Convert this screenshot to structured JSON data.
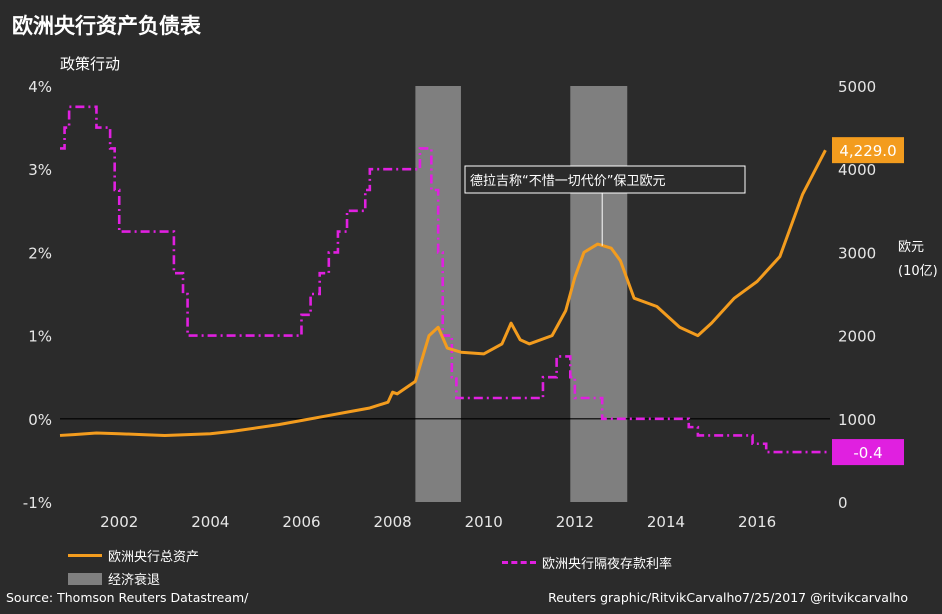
{
  "title": "欧洲央行资产负债表",
  "subtitle": "政策行动",
  "right_unit": [
    "欧元",
    "(10亿)"
  ],
  "annotation": "德拉吉称“不惜一切代价”保卫欧元",
  "footer": {
    "source": "Source: Thomson Reuters Datastream/",
    "credit": "Reuters graphic/RitvikCarvalho7/25/2017  @ritvikcarvalho"
  },
  "legend": {
    "assets": "欧洲央行总资产",
    "rate": "欧洲央行隔夜存款利率",
    "recession": "经济衰退"
  },
  "colors": {
    "assets": "#f39c1e",
    "rate": "#e020e0",
    "recession": "#7f7f7f",
    "background": "#2b2b2b"
  },
  "chart_data": {
    "type": "line",
    "title": "欧洲央行资产负债表",
    "subtitle": "政策行动",
    "x_ticks": [
      "2002",
      "2004",
      "2006",
      "2008",
      "2010",
      "2012",
      "2014",
      "2016"
    ],
    "xlim": [
      2000.7,
      2017.6
    ],
    "left_axis": {
      "ticks": [
        "4%",
        "3%",
        "2%",
        "1%",
        "0%",
        "-1%"
      ],
      "ylim": [
        -1,
        4
      ]
    },
    "right_axis": {
      "ticks": [
        "5000",
        "4000",
        "3000",
        "2000",
        "1000",
        "0"
      ],
      "ylim": [
        0,
        5000
      ],
      "label": "欧元 (10亿)"
    },
    "recessions": [
      [
        2008.5,
        2009.5
      ],
      [
        2011.9,
        2013.15
      ]
    ],
    "series": [
      {
        "name": "欧洲央行总资产",
        "axis": "right",
        "style": "solid",
        "last_label": "4,229.0",
        "points": [
          [
            2000.7,
            800
          ],
          [
            2001.0,
            810
          ],
          [
            2001.5,
            830
          ],
          [
            2002.0,
            820
          ],
          [
            2002.5,
            810
          ],
          [
            2003.0,
            800
          ],
          [
            2003.5,
            810
          ],
          [
            2004.0,
            820
          ],
          [
            2004.5,
            850
          ],
          [
            2005.0,
            890
          ],
          [
            2005.5,
            930
          ],
          [
            2006.0,
            980
          ],
          [
            2006.5,
            1030
          ],
          [
            2007.0,
            1080
          ],
          [
            2007.5,
            1130
          ],
          [
            2007.9,
            1200
          ],
          [
            2008.0,
            1320
          ],
          [
            2008.1,
            1300
          ],
          [
            2008.5,
            1450
          ],
          [
            2008.8,
            2000
          ],
          [
            2009.0,
            2100
          ],
          [
            2009.2,
            1850
          ],
          [
            2009.5,
            1800
          ],
          [
            2010.0,
            1780
          ],
          [
            2010.4,
            1900
          ],
          [
            2010.6,
            2150
          ],
          [
            2010.8,
            1950
          ],
          [
            2011.0,
            1900
          ],
          [
            2011.5,
            2000
          ],
          [
            2011.8,
            2300
          ],
          [
            2012.0,
            2700
          ],
          [
            2012.2,
            3000
          ],
          [
            2012.5,
            3100
          ],
          [
            2012.8,
            3050
          ],
          [
            2013.0,
            2900
          ],
          [
            2013.3,
            2450
          ],
          [
            2013.8,
            2350
          ],
          [
            2014.3,
            2100
          ],
          [
            2014.7,
            2000
          ],
          [
            2015.0,
            2150
          ],
          [
            2015.5,
            2450
          ],
          [
            2016.0,
            2650
          ],
          [
            2016.5,
            2950
          ],
          [
            2017.0,
            3700
          ],
          [
            2017.5,
            4229
          ]
        ]
      },
      {
        "name": "欧洲央行隔夜存款利率",
        "axis": "left",
        "style": "dashdot",
        "last_label": "-0.4",
        "points": [
          [
            2000.7,
            3.25
          ],
          [
            2000.8,
            3.5
          ],
          [
            2000.9,
            3.75
          ],
          [
            2001.4,
            3.75
          ],
          [
            2001.5,
            3.5
          ],
          [
            2001.7,
            3.5
          ],
          [
            2001.8,
            3.25
          ],
          [
            2001.9,
            2.75
          ],
          [
            2002.0,
            2.25
          ],
          [
            2003.0,
            2.25
          ],
          [
            2003.2,
            1.75
          ],
          [
            2003.4,
            1.5
          ],
          [
            2003.5,
            1.0
          ],
          [
            2005.9,
            1.0
          ],
          [
            2006.0,
            1.25
          ],
          [
            2006.2,
            1.5
          ],
          [
            2006.4,
            1.75
          ],
          [
            2006.6,
            2.0
          ],
          [
            2006.8,
            2.25
          ],
          [
            2007.0,
            2.5
          ],
          [
            2007.4,
            2.75
          ],
          [
            2007.5,
            3.0
          ],
          [
            2008.5,
            3.0
          ],
          [
            2008.6,
            3.25
          ],
          [
            2008.8,
            3.25
          ],
          [
            2008.85,
            2.75
          ],
          [
            2009.0,
            2.0
          ],
          [
            2009.1,
            1.0
          ],
          [
            2009.3,
            0.5
          ],
          [
            2009.4,
            0.25
          ],
          [
            2011.2,
            0.25
          ],
          [
            2011.3,
            0.5
          ],
          [
            2011.6,
            0.75
          ],
          [
            2011.9,
            0.5
          ],
          [
            2012.0,
            0.25
          ],
          [
            2012.5,
            0.25
          ],
          [
            2012.6,
            0.0
          ],
          [
            2014.4,
            0.0
          ],
          [
            2014.5,
            -0.1
          ],
          [
            2014.7,
            -0.2
          ],
          [
            2015.8,
            -0.2
          ],
          [
            2015.9,
            -0.3
          ],
          [
            2016.2,
            -0.4
          ],
          [
            2017.6,
            -0.4
          ]
        ]
      }
    ]
  }
}
